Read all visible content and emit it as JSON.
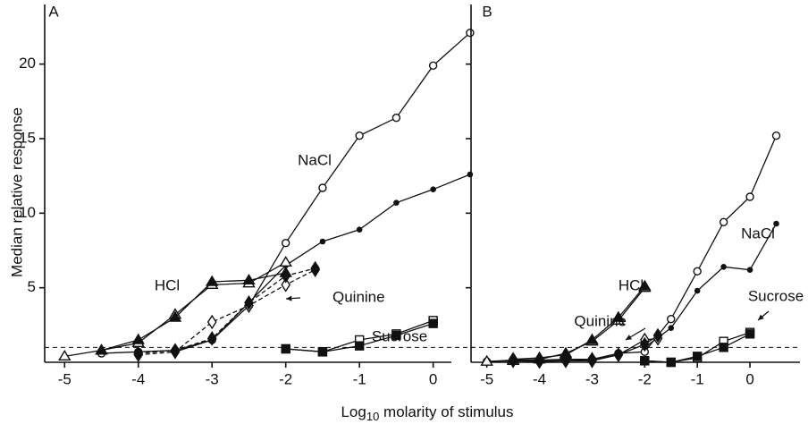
{
  "y_label": "Median relative response",
  "x_label": [
    "Log",
    "10",
    " molarity of stimulus"
  ],
  "chart_data": [
    {
      "type": "line",
      "panel": "A",
      "xlim": [
        -5.27,
        0.55
      ],
      "ylim": [
        0,
        24
      ],
      "xticks": [
        -5,
        -4,
        -3,
        -2,
        -1,
        0
      ],
      "yticks": [
        5,
        10,
        15,
        20
      ],
      "ytick_labels": true,
      "reference_line": 1,
      "series": [
        {
          "marker": "circle",
          "filled": false,
          "dashed": false,
          "x": [
            -4.5,
            -4,
            -3.5,
            -3,
            -2.5,
            -2,
            -1.5,
            -1,
            -0.5,
            0,
            0.5
          ],
          "values": [
            0.6,
            0.7,
            0.8,
            1.5,
            3.8,
            8,
            11.7,
            15.2,
            16.4,
            19.9,
            22.1
          ]
        },
        {
          "marker": "circle",
          "filled": true,
          "dashed": false,
          "x": [
            -3.5,
            -3,
            -2.5,
            -2,
            -1.5,
            -1,
            -0.5,
            0,
            0.5
          ],
          "values": [
            0.7,
            1.5,
            4,
            6.5,
            8.1,
            8.9,
            10.7,
            11.6,
            12.6
          ]
        },
        {
          "marker": "triangle",
          "filled": false,
          "dashed": false,
          "x": [
            -5,
            -4.5,
            -4,
            -3.5,
            -3,
            -2.5,
            -2
          ],
          "values": [
            0.4,
            0.8,
            1.3,
            3.2,
            5.2,
            5.3,
            6.7
          ]
        },
        {
          "marker": "triangle",
          "filled": true,
          "dashed": false,
          "x": [
            -4.5,
            -4,
            -3.5,
            -3,
            -2.5,
            -2
          ],
          "values": [
            0.8,
            1.5,
            3.0,
            5.4,
            5.5,
            6.0
          ]
        },
        {
          "marker": "diamond",
          "filled": false,
          "dashed": true,
          "x": [
            -4,
            -3.5,
            -3,
            -2.5,
            -2,
            -1.6
          ],
          "values": [
            0.5,
            0.7,
            2.7,
            3.8,
            5.2,
            6.2
          ]
        },
        {
          "marker": "diamond",
          "filled": true,
          "dashed": true,
          "x": [
            -4,
            -3.5,
            -3,
            -2.5,
            -2,
            -1.6
          ],
          "values": [
            0.6,
            0.8,
            1.6,
            4,
            5.8,
            6.3
          ]
        },
        {
          "marker": "square",
          "filled": false,
          "dashed": false,
          "x": [
            -2,
            -1.5,
            -1,
            -0.5,
            0
          ],
          "values": [
            0.9,
            0.7,
            1.5,
            1.9,
            2.8
          ]
        },
        {
          "marker": "square",
          "filled": true,
          "dashed": false,
          "x": [
            -2,
            -1.5,
            -1,
            -0.5,
            0
          ],
          "values": [
            0.9,
            0.7,
            1.1,
            1.8,
            2.6
          ]
        }
      ],
      "annotations": [
        "NaCl",
        "HCl",
        "Quinine",
        "Sucrose"
      ]
    },
    {
      "type": "line",
      "panel": "B",
      "xlim": [
        -5.3,
        0.95
      ],
      "ylim": [
        0,
        24
      ],
      "xticks": [
        -5,
        -4,
        -3,
        -2,
        -1,
        0
      ],
      "yticks": [
        5,
        10,
        15,
        20
      ],
      "ytick_labels": false,
      "reference_line": 1,
      "series": [
        {
          "marker": "circle",
          "filled": false,
          "dashed": false,
          "x": [
            -5,
            -4.5,
            -4,
            -3.5,
            -3,
            -2.5,
            -2,
            -1.5,
            -1,
            -0.5,
            0,
            0.5
          ],
          "values": [
            0.05,
            0.15,
            0.15,
            0.2,
            0.2,
            0.6,
            0.7,
            2.9,
            6.1,
            9.4,
            11.1,
            15.2
          ]
        },
        {
          "marker": "circle",
          "filled": true,
          "dashed": false,
          "x": [
            -2,
            -1.5,
            -1,
            -0.5,
            0,
            0.5
          ],
          "values": [
            1.0,
            2.3,
            4.8,
            6.4,
            6.2,
            9.3
          ]
        },
        {
          "marker": "triangle",
          "filled": false,
          "dashed": false,
          "x": [
            -5,
            -4.5,
            -4,
            -3.5,
            -3,
            -2.5,
            -2
          ],
          "values": [
            0.05,
            0.1,
            0.2,
            0.6,
            1.4,
            2.8,
            5.0
          ]
        },
        {
          "marker": "triangle",
          "filled": true,
          "dashed": false,
          "x": [
            -4.5,
            -4,
            -3.5,
            -3,
            -2.5,
            -2
          ],
          "values": [
            0.2,
            0.3,
            0.5,
            1.5,
            3.0,
            5.1
          ]
        },
        {
          "marker": "diamond",
          "filled": false,
          "dashed": false,
          "x": [
            -4.5,
            -4,
            -3.5,
            -3,
            -2.5,
            -2,
            -1.75
          ],
          "values": [
            0.1,
            0.05,
            0.1,
            0.1,
            0.5,
            1.5,
            1.6
          ]
        },
        {
          "marker": "diamond",
          "filled": true,
          "dashed": false,
          "x": [
            -4.5,
            -4,
            -3.5,
            -3,
            -2.5,
            -2,
            -1.75
          ],
          "values": [
            0.2,
            0.1,
            0.1,
            0.2,
            0.5,
            1.2,
            1.8
          ]
        },
        {
          "marker": "square",
          "filled": false,
          "dashed": false,
          "x": [
            -2,
            -1.5,
            -1,
            -0.5,
            0
          ],
          "values": [
            0.1,
            0,
            0.3,
            1.4,
            2.0
          ]
        },
        {
          "marker": "square",
          "filled": true,
          "dashed": false,
          "x": [
            -2,
            -1.5,
            -1,
            -0.5,
            0
          ],
          "values": [
            0.1,
            0,
            0.4,
            1.0,
            1.9
          ]
        }
      ],
      "annotations": [
        "HCl",
        "NaCl",
        "Sucrose",
        "Quinine"
      ]
    }
  ]
}
